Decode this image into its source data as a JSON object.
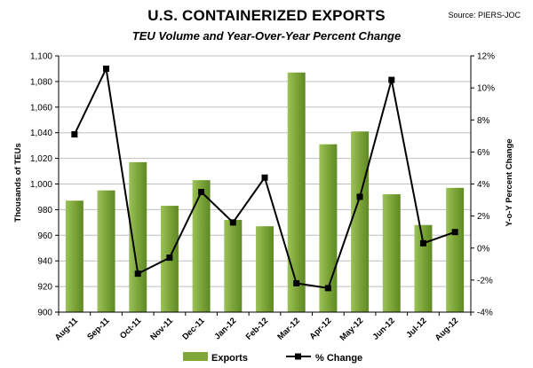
{
  "header": {
    "title": "U.S. CONTAINERIZED EXPORTS",
    "subtitle": "TEU Volume and Year-Over-Year Percent Change",
    "source": "Source: PIERS-JOC"
  },
  "chart_data": {
    "type": "bar",
    "categories": [
      "Aug-11",
      "Sep-11",
      "Oct-11",
      "Nov-11",
      "Dec-11",
      "Jan-12",
      "Feb-12",
      "Mar-12",
      "Apr-12",
      "May-12",
      "Jun-12",
      "Jul-12",
      "Aug-12"
    ],
    "series": [
      {
        "name": "Exports",
        "type": "bar",
        "axis": "left",
        "color": "#7fa73a",
        "values": [
          987,
          995,
          1017,
          983,
          1003,
          972,
          967,
          1087,
          1031,
          1041,
          992,
          968,
          997
        ]
      },
      {
        "name": "% Change",
        "type": "line",
        "axis": "right",
        "color": "#000000",
        "values": [
          7.1,
          11.2,
          -1.6,
          -0.6,
          3.5,
          1.6,
          4.4,
          -2.2,
          -2.5,
          3.2,
          10.5,
          0.3,
          1.0
        ]
      }
    ],
    "y_left": {
      "label": "Thousands of TEUs",
      "min": 900,
      "max": 1100,
      "step": 20,
      "ticks": [
        "900",
        "920",
        "940",
        "960",
        "980",
        "1,000",
        "1,020",
        "1,040",
        "1,060",
        "1,080",
        "1,100"
      ]
    },
    "y_right": {
      "label": "Y-o-Y Percent Change",
      "min": -4,
      "max": 12,
      "step": 2,
      "ticks": [
        "-4%",
        "-2%",
        "0%",
        "2%",
        "4%",
        "6%",
        "8%",
        "10%",
        "12%"
      ]
    },
    "grid": true,
    "legend_position": "bottom"
  }
}
